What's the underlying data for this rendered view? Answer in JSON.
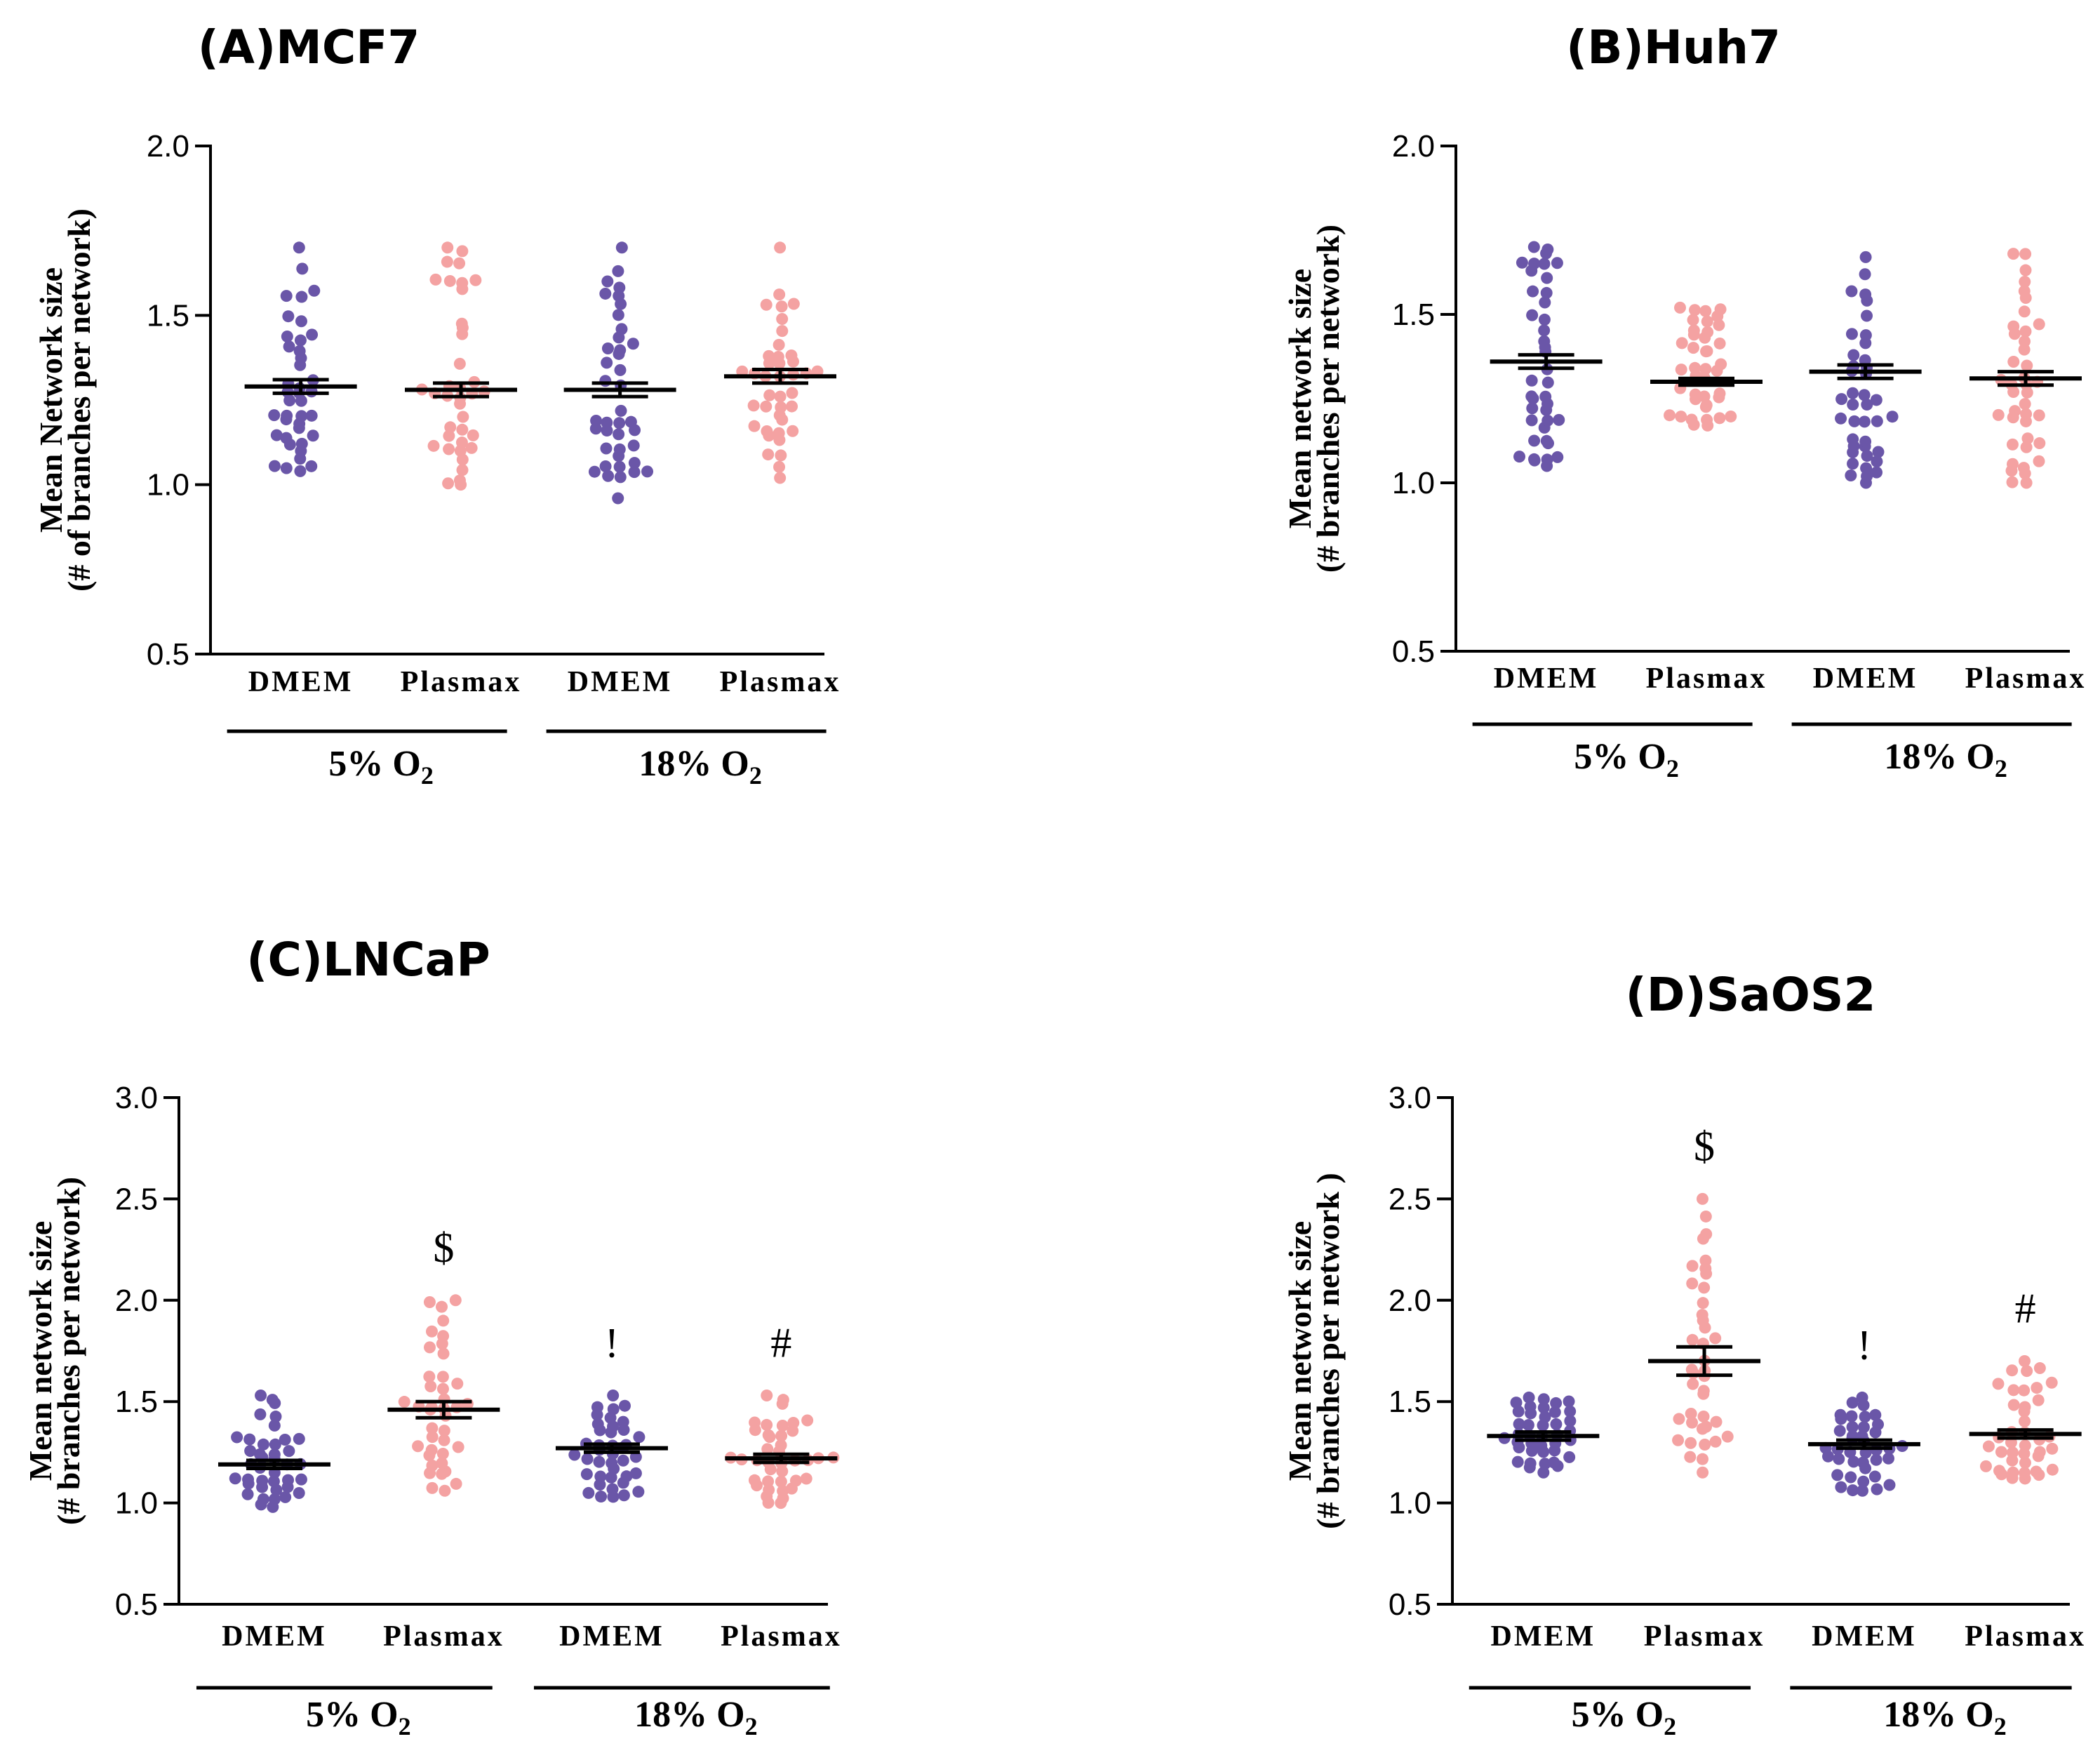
{
  "colors": {
    "dmem": "#6a56a8",
    "plasmax": "#f4a2a2",
    "axis": "#000000"
  },
  "chart_data": [
    {
      "type": "scatter",
      "panel": "A",
      "title": "(A)MCF7",
      "ylabel_line1": "Mean Network size",
      "ylabel_line2": "(# of branches per network)",
      "ylim": [
        0.5,
        2.0
      ],
      "yticks": [
        "0.5",
        "1.0",
        "1.5",
        "2.0"
      ],
      "categories": [
        "DMEM",
        "Plasmax",
        "DMEM",
        "Plasmax"
      ],
      "groups": [
        {
          "label": "5% O",
          "sub": "2",
          "categories": [
            0,
            1
          ]
        },
        {
          "label": "18% O",
          "sub": "2",
          "categories": [
            2,
            3
          ]
        }
      ],
      "series": [
        {
          "category": "DMEM",
          "group": "5% O2",
          "mean": 1.29,
          "sem": 0.02,
          "n": 40,
          "min": 1.04,
          "max": 1.7,
          "annotation": ""
        },
        {
          "category": "Plasmax",
          "group": "5% O2",
          "mean": 1.28,
          "sem": 0.02,
          "n": 38,
          "min": 1.0,
          "max": 1.7,
          "annotation": ""
        },
        {
          "category": "DMEM",
          "group": "18% O2",
          "mean": 1.28,
          "sem": 0.02,
          "n": 40,
          "min": 0.96,
          "max": 1.7,
          "annotation": ""
        },
        {
          "category": "Plasmax",
          "group": "18% O2",
          "mean": 1.32,
          "sem": 0.02,
          "n": 40,
          "min": 1.02,
          "max": 1.7,
          "annotation": ""
        }
      ]
    },
    {
      "type": "scatter",
      "panel": "B",
      "title": "(B)Huh7",
      "ylabel_line1": "Mean network size",
      "ylabel_line2": "(# branches per network)",
      "ylim": [
        0.5,
        2.0
      ],
      "yticks": [
        "0.5",
        "1.0",
        "1.5",
        "2.0"
      ],
      "categories": [
        "DMEM",
        "Plasmax",
        "DMEM",
        "Plasmax"
      ],
      "groups": [
        {
          "label": "5% O",
          "sub": "2",
          "categories": [
            0,
            1
          ]
        },
        {
          "label": "18% O",
          "sub": "2",
          "categories": [
            2,
            3
          ]
        }
      ],
      "series": [
        {
          "category": "DMEM",
          "group": "5% O2",
          "mean": 1.36,
          "sem": 0.02,
          "n": 40,
          "min": 1.05,
          "max": 1.7,
          "annotation": ""
        },
        {
          "category": "Plasmax",
          "group": "5% O2",
          "mean": 1.3,
          "sem": 0.01,
          "n": 40,
          "min": 1.17,
          "max": 1.52,
          "annotation": ""
        },
        {
          "category": "DMEM",
          "group": "18% O2",
          "mean": 1.33,
          "sem": 0.02,
          "n": 40,
          "min": 1.0,
          "max": 1.67,
          "annotation": ""
        },
        {
          "category": "Plasmax",
          "group": "18% O2",
          "mean": 1.31,
          "sem": 0.02,
          "n": 40,
          "min": 1.0,
          "max": 1.68,
          "annotation": ""
        }
      ]
    },
    {
      "type": "scatter",
      "panel": "C",
      "title": "(C)LNCaP",
      "ylabel_line1": "Mean network size",
      "ylabel_line2": "(# branches per network)",
      "ylim": [
        0.5,
        3.0
      ],
      "yticks": [
        "0.5",
        "1.0",
        "1.5",
        "2.0",
        "2.5",
        "3.0"
      ],
      "categories": [
        "DMEM",
        "Plasmax",
        "DMEM",
        "Plasmax"
      ],
      "groups": [
        {
          "label": "5% O",
          "sub": "2",
          "categories": [
            0,
            1
          ]
        },
        {
          "label": "18% O",
          "sub": "2",
          "categories": [
            2,
            3
          ]
        }
      ],
      "series": [
        {
          "category": "DMEM",
          "group": "5% O2",
          "mean": 1.19,
          "sem": 0.02,
          "n": 40,
          "min": 0.98,
          "max": 1.53,
          "annotation": ""
        },
        {
          "category": "Plasmax",
          "group": "5% O2",
          "mean": 1.46,
          "sem": 0.04,
          "n": 40,
          "min": 1.06,
          "max": 2.0,
          "annotation": "$"
        },
        {
          "category": "DMEM",
          "group": "18% O2",
          "mean": 1.27,
          "sem": 0.02,
          "n": 40,
          "min": 1.03,
          "max": 1.53,
          "annotation": "!"
        },
        {
          "category": "Plasmax",
          "group": "18% O2",
          "mean": 1.22,
          "sem": 0.02,
          "n": 40,
          "min": 1.0,
          "max": 1.53,
          "annotation": "#"
        }
      ]
    },
    {
      "type": "scatter",
      "panel": "D",
      "title": "(D)SaOS2",
      "ylabel_line1": "Mean network size",
      "ylabel_line2": "(# branches per network )",
      "ylim": [
        0.5,
        3.0
      ],
      "yticks": [
        "0.5",
        "1.0",
        "1.5",
        "2.0",
        "2.5",
        "3.0"
      ],
      "categories": [
        "DMEM",
        "Plasmax",
        "DMEM",
        "Plasmax"
      ],
      "groups": [
        {
          "label": "5% O",
          "sub": "2",
          "categories": [
            0,
            1
          ]
        },
        {
          "label": "18% O",
          "sub": "2",
          "categories": [
            2,
            3
          ]
        }
      ],
      "series": [
        {
          "category": "DMEM",
          "group": "5% O2",
          "mean": 1.33,
          "sem": 0.02,
          "n": 40,
          "min": 1.15,
          "max": 1.52,
          "annotation": ""
        },
        {
          "category": "Plasmax",
          "group": "5% O2",
          "mean": 1.7,
          "sem": 0.07,
          "n": 40,
          "min": 1.15,
          "max": 2.5,
          "annotation": "$"
        },
        {
          "category": "DMEM",
          "group": "18% O2",
          "mean": 1.29,
          "sem": 0.02,
          "n": 40,
          "min": 1.06,
          "max": 1.52,
          "annotation": "!"
        },
        {
          "category": "Plasmax",
          "group": "18% O2",
          "mean": 1.34,
          "sem": 0.02,
          "n": 40,
          "min": 1.12,
          "max": 1.7,
          "annotation": "#"
        }
      ]
    }
  ]
}
